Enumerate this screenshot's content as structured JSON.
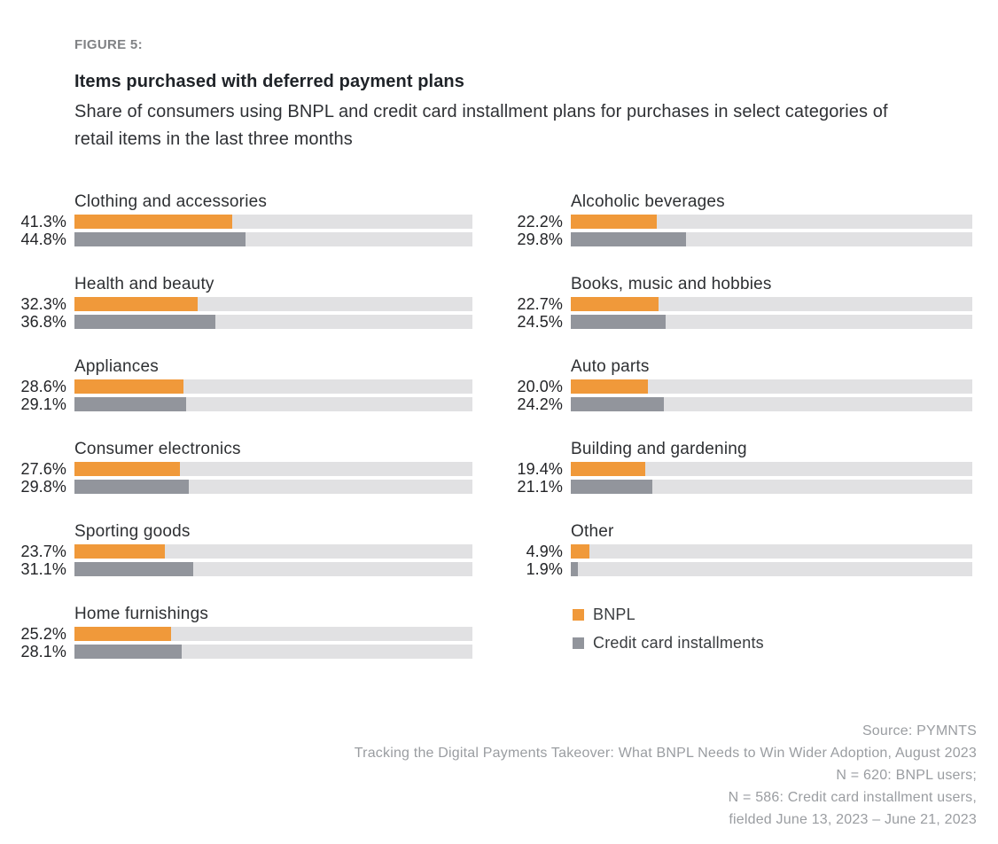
{
  "header": {
    "figure_label": "FIGURE 5:",
    "title": "Items purchased with deferred payment plans",
    "subtitle": "Share of consumers using BNPL and credit card installment plans for purchases in select categories of retail items in the last three months"
  },
  "colors": {
    "bnpl": "#F0993A",
    "credit": "#92959C",
    "track": "#E1E1E3"
  },
  "legend": {
    "items": [
      {
        "label": "BNPL",
        "color": "#F0993A"
      },
      {
        "label": "Credit card installments",
        "color": "#92959C"
      }
    ]
  },
  "chart_data": {
    "type": "bar",
    "orientation": "horizontal",
    "unit": "percent",
    "value_suffix": "%",
    "axis_max": 104,
    "grid": false,
    "legend_position": "bottom-right",
    "series_names": [
      "BNPL",
      "Credit card installments"
    ],
    "columns": {
      "left": [
        {
          "category": "Clothing and accessories",
          "bnpl": 41.3,
          "credit": 44.8
        },
        {
          "category": "Health and beauty",
          "bnpl": 32.3,
          "credit": 36.8
        },
        {
          "category": "Appliances",
          "bnpl": 28.6,
          "credit": 29.1
        },
        {
          "category": "Consumer electronics",
          "bnpl": 27.6,
          "credit": 29.8
        },
        {
          "category": "Sporting goods",
          "bnpl": 23.7,
          "credit": 31.1
        },
        {
          "category": "Home furnishings",
          "bnpl": 25.2,
          "credit": 28.1
        }
      ],
      "right": [
        {
          "category": "Alcoholic beverages",
          "bnpl": 22.2,
          "credit": 29.8
        },
        {
          "category": "Books, music and hobbies",
          "bnpl": 22.7,
          "credit": 24.5
        },
        {
          "category": "Auto parts",
          "bnpl": 20.0,
          "credit": 24.2
        },
        {
          "category": "Building and gardening",
          "bnpl": 19.4,
          "credit": 21.1
        },
        {
          "category": "Other",
          "bnpl": 4.9,
          "credit": 1.9
        }
      ]
    }
  },
  "footer": {
    "lines": [
      "Source: PYMNTS",
      "Tracking the Digital Payments Takeover: What BNPL Needs to Win Wider Adoption, August 2023",
      "N = 620: BNPL users;",
      "N = 586: Credit card installment users,",
      "fielded June 13, 2023 – June 21, 2023"
    ]
  }
}
